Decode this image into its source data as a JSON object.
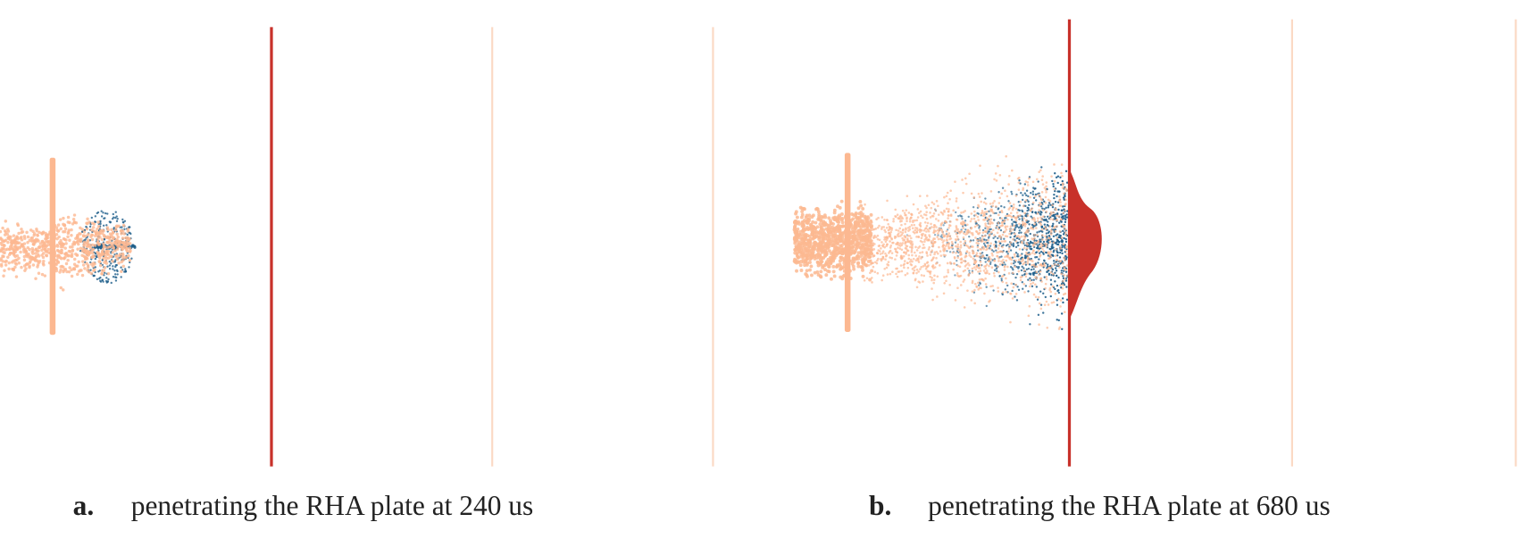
{
  "panels": [
    {
      "label": "a.",
      "caption": "penetrating the RHA plate at 240 us"
    },
    {
      "label": "b.",
      "caption": "penetrating the RHA plate at 680 us"
    }
  ]
}
